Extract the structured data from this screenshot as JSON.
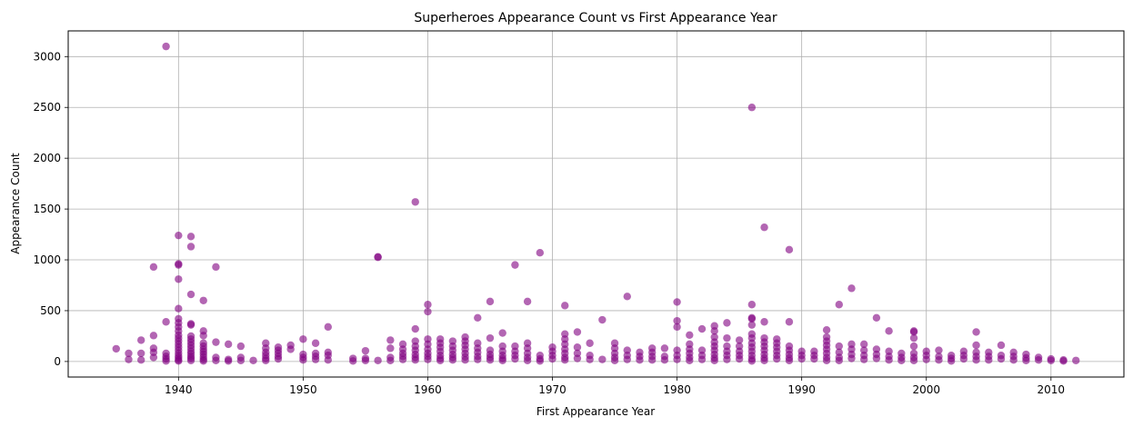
{
  "chart_data": {
    "type": "scatter",
    "title": "Superheroes Appearance Count vs First Appearance Year",
    "xlabel": "First Appearance Year",
    "ylabel": "Appearance Count",
    "xlim": [
      1931.15,
      2015.85
    ],
    "ylim": [
      -153,
      3253
    ],
    "xticks": [
      1940,
      1950,
      1960,
      1970,
      1980,
      1990,
      2000,
      2010
    ],
    "yticks": [
      0,
      500,
      1000,
      1500,
      2000,
      2500,
      3000
    ],
    "grid": true,
    "legend": "none",
    "marker_color": "#800080",
    "marker_alpha": 0.6,
    "points": [
      [
        1935,
        125
      ],
      [
        1936,
        80
      ],
      [
        1936,
        20
      ],
      [
        1937,
        210
      ],
      [
        1937,
        80
      ],
      [
        1937,
        15
      ],
      [
        1938,
        930
      ],
      [
        1938,
        255
      ],
      [
        1938,
        130
      ],
      [
        1938,
        90
      ],
      [
        1938,
        40
      ],
      [
        1939,
        3100
      ],
      [
        1939,
        390
      ],
      [
        1939,
        80
      ],
      [
        1939,
        50
      ],
      [
        1939,
        25
      ],
      [
        1939,
        5
      ],
      [
        1940,
        1240
      ],
      [
        1940,
        960
      ],
      [
        1940,
        950
      ],
      [
        1940,
        810
      ],
      [
        1940,
        520
      ],
      [
        1940,
        420
      ],
      [
        1940,
        380
      ],
      [
        1940,
        340
      ],
      [
        1940,
        300
      ],
      [
        1940,
        260
      ],
      [
        1940,
        230
      ],
      [
        1940,
        200
      ],
      [
        1940,
        170
      ],
      [
        1940,
        140
      ],
      [
        1940,
        110
      ],
      [
        1940,
        80
      ],
      [
        1940,
        55
      ],
      [
        1940,
        35
      ],
      [
        1940,
        15
      ],
      [
        1940,
        5
      ],
      [
        1941,
        1230
      ],
      [
        1941,
        1130
      ],
      [
        1941,
        660
      ],
      [
        1941,
        370
      ],
      [
        1941,
        360
      ],
      [
        1941,
        250
      ],
      [
        1941,
        220
      ],
      [
        1941,
        190
      ],
      [
        1941,
        160
      ],
      [
        1941,
        130
      ],
      [
        1941,
        100
      ],
      [
        1941,
        75
      ],
      [
        1941,
        50
      ],
      [
        1941,
        30
      ],
      [
        1941,
        10
      ],
      [
        1942,
        600
      ],
      [
        1942,
        300
      ],
      [
        1942,
        255
      ],
      [
        1942,
        180
      ],
      [
        1942,
        150
      ],
      [
        1942,
        120
      ],
      [
        1942,
        95
      ],
      [
        1942,
        70
      ],
      [
        1942,
        45
      ],
      [
        1942,
        20
      ],
      [
        1942,
        5
      ],
      [
        1943,
        930
      ],
      [
        1943,
        190
      ],
      [
        1943,
        40
      ],
      [
        1943,
        10
      ],
      [
        1944,
        170
      ],
      [
        1944,
        20
      ],
      [
        1944,
        5
      ],
      [
        1945,
        150
      ],
      [
        1945,
        40
      ],
      [
        1945,
        10
      ],
      [
        1946,
        10
      ],
      [
        1947,
        180
      ],
      [
        1947,
        130
      ],
      [
        1947,
        90
      ],
      [
        1947,
        60
      ],
      [
        1947,
        30
      ],
      [
        1947,
        10
      ],
      [
        1948,
        140
      ],
      [
        1948,
        110
      ],
      [
        1948,
        80
      ],
      [
        1948,
        50
      ],
      [
        1948,
        25
      ],
      [
        1949,
        160
      ],
      [
        1949,
        120
      ],
      [
        1950,
        220
      ],
      [
        1950,
        70
      ],
      [
        1950,
        40
      ],
      [
        1950,
        15
      ],
      [
        1951,
        180
      ],
      [
        1951,
        80
      ],
      [
        1951,
        50
      ],
      [
        1951,
        20
      ],
      [
        1952,
        340
      ],
      [
        1952,
        90
      ],
      [
        1952,
        60
      ],
      [
        1952,
        15
      ],
      [
        1954,
        30
      ],
      [
        1954,
        5
      ],
      [
        1955,
        105
      ],
      [
        1955,
        30
      ],
      [
        1955,
        10
      ],
      [
        1956,
        1030
      ],
      [
        1956,
        1025
      ],
      [
        1956,
        10
      ],
      [
        1957,
        210
      ],
      [
        1957,
        130
      ],
      [
        1957,
        40
      ],
      [
        1957,
        10
      ],
      [
        1958,
        170
      ],
      [
        1958,
        120
      ],
      [
        1958,
        80
      ],
      [
        1958,
        50
      ],
      [
        1958,
        20
      ],
      [
        1959,
        1570
      ],
      [
        1959,
        320
      ],
      [
        1959,
        200
      ],
      [
        1959,
        150
      ],
      [
        1959,
        110
      ],
      [
        1959,
        70
      ],
      [
        1959,
        40
      ],
      [
        1959,
        15
      ],
      [
        1960,
        560
      ],
      [
        1960,
        490
      ],
      [
        1960,
        220
      ],
      [
        1960,
        170
      ],
      [
        1960,
        120
      ],
      [
        1960,
        80
      ],
      [
        1960,
        50
      ],
      [
        1960,
        20
      ],
      [
        1961,
        220
      ],
      [
        1961,
        180
      ],
      [
        1961,
        140
      ],
      [
        1961,
        100
      ],
      [
        1961,
        60
      ],
      [
        1961,
        30
      ],
      [
        1961,
        10
      ],
      [
        1962,
        200
      ],
      [
        1962,
        150
      ],
      [
        1962,
        110
      ],
      [
        1962,
        70
      ],
      [
        1962,
        40
      ],
      [
        1962,
        15
      ],
      [
        1963,
        240
      ],
      [
        1963,
        200
      ],
      [
        1963,
        160
      ],
      [
        1963,
        120
      ],
      [
        1963,
        80
      ],
      [
        1963,
        45
      ],
      [
        1963,
        15
      ],
      [
        1964,
        430
      ],
      [
        1964,
        180
      ],
      [
        1964,
        130
      ],
      [
        1964,
        90
      ],
      [
        1964,
        50
      ],
      [
        1964,
        20
      ],
      [
        1965,
        590
      ],
      [
        1965,
        230
      ],
      [
        1965,
        110
      ],
      [
        1965,
        70
      ],
      [
        1965,
        40
      ],
      [
        1965,
        15
      ],
      [
        1966,
        280
      ],
      [
        1966,
        150
      ],
      [
        1966,
        100
      ],
      [
        1966,
        60
      ],
      [
        1966,
        30
      ],
      [
        1966,
        10
      ],
      [
        1967,
        950
      ],
      [
        1967,
        150
      ],
      [
        1967,
        100
      ],
      [
        1967,
        60
      ],
      [
        1967,
        25
      ],
      [
        1968,
        590
      ],
      [
        1968,
        180
      ],
      [
        1968,
        130
      ],
      [
        1968,
        80
      ],
      [
        1968,
        40
      ],
      [
        1968,
        10
      ],
      [
        1969,
        1070
      ],
      [
        1969,
        60
      ],
      [
        1969,
        25
      ],
      [
        1969,
        5
      ],
      [
        1970,
        140
      ],
      [
        1970,
        100
      ],
      [
        1970,
        60
      ],
      [
        1970,
        25
      ],
      [
        1971,
        550
      ],
      [
        1971,
        270
      ],
      [
        1971,
        220
      ],
      [
        1971,
        170
      ],
      [
        1971,
        120
      ],
      [
        1971,
        80
      ],
      [
        1971,
        40
      ],
      [
        1971,
        15
      ],
      [
        1972,
        290
      ],
      [
        1972,
        140
      ],
      [
        1972,
        80
      ],
      [
        1972,
        30
      ],
      [
        1973,
        180
      ],
      [
        1973,
        60
      ],
      [
        1973,
        20
      ],
      [
        1974,
        410
      ],
      [
        1974,
        20
      ],
      [
        1975,
        180
      ],
      [
        1975,
        130
      ],
      [
        1975,
        80
      ],
      [
        1975,
        40
      ],
      [
        1975,
        10
      ],
      [
        1976,
        640
      ],
      [
        1976,
        110
      ],
      [
        1976,
        60
      ],
      [
        1976,
        20
      ],
      [
        1977,
        90
      ],
      [
        1977,
        50
      ],
      [
        1977,
        15
      ],
      [
        1978,
        130
      ],
      [
        1978,
        90
      ],
      [
        1978,
        50
      ],
      [
        1978,
        15
      ],
      [
        1979,
        130
      ],
      [
        1979,
        50
      ],
      [
        1979,
        15
      ],
      [
        1980,
        585
      ],
      [
        1980,
        400
      ],
      [
        1980,
        340
      ],
      [
        1980,
        110
      ],
      [
        1980,
        60
      ],
      [
        1980,
        20
      ],
      [
        1981,
        260
      ],
      [
        1981,
        170
      ],
      [
        1981,
        120
      ],
      [
        1981,
        80
      ],
      [
        1981,
        40
      ],
      [
        1981,
        10
      ],
      [
        1982,
        320
      ],
      [
        1982,
        110
      ],
      [
        1982,
        60
      ],
      [
        1982,
        20
      ],
      [
        1983,
        350
      ],
      [
        1983,
        300
      ],
      [
        1983,
        240
      ],
      [
        1983,
        190
      ],
      [
        1983,
        150
      ],
      [
        1983,
        110
      ],
      [
        1983,
        70
      ],
      [
        1983,
        35
      ],
      [
        1983,
        10
      ],
      [
        1984,
        380
      ],
      [
        1984,
        230
      ],
      [
        1984,
        150
      ],
      [
        1984,
        100
      ],
      [
        1984,
        60
      ],
      [
        1984,
        20
      ],
      [
        1985,
        210
      ],
      [
        1985,
        150
      ],
      [
        1985,
        100
      ],
      [
        1985,
        60
      ],
      [
        1985,
        25
      ],
      [
        1986,
        2500
      ],
      [
        1986,
        560
      ],
      [
        1986,
        430
      ],
      [
        1986,
        420
      ],
      [
        1986,
        360
      ],
      [
        1986,
        270
      ],
      [
        1986,
        230
      ],
      [
        1986,
        180
      ],
      [
        1986,
        140
      ],
      [
        1986,
        100
      ],
      [
        1986,
        60
      ],
      [
        1986,
        25
      ],
      [
        1986,
        5
      ],
      [
        1987,
        1320
      ],
      [
        1987,
        390
      ],
      [
        1987,
        230
      ],
      [
        1987,
        190
      ],
      [
        1987,
        150
      ],
      [
        1987,
        110
      ],
      [
        1987,
        70
      ],
      [
        1987,
        35
      ],
      [
        1987,
        10
      ],
      [
        1988,
        220
      ],
      [
        1988,
        180
      ],
      [
        1988,
        140
      ],
      [
        1988,
        100
      ],
      [
        1988,
        60
      ],
      [
        1988,
        25
      ],
      [
        1989,
        1100
      ],
      [
        1989,
        390
      ],
      [
        1989,
        150
      ],
      [
        1989,
        110
      ],
      [
        1989,
        70
      ],
      [
        1989,
        35
      ],
      [
        1989,
        10
      ],
      [
        1990,
        100
      ],
      [
        1990,
        60
      ],
      [
        1990,
        25
      ],
      [
        1991,
        100
      ],
      [
        1991,
        60
      ],
      [
        1991,
        25
      ],
      [
        1992,
        310
      ],
      [
        1992,
        240
      ],
      [
        1992,
        200
      ],
      [
        1992,
        160
      ],
      [
        1992,
        120
      ],
      [
        1992,
        80
      ],
      [
        1992,
        40
      ],
      [
        1992,
        10
      ],
      [
        1993,
        560
      ],
      [
        1993,
        150
      ],
      [
        1993,
        90
      ],
      [
        1993,
        40
      ],
      [
        1993,
        10
      ],
      [
        1994,
        720
      ],
      [
        1994,
        170
      ],
      [
        1994,
        120
      ],
      [
        1994,
        70
      ],
      [
        1994,
        30
      ],
      [
        1995,
        170
      ],
      [
        1995,
        110
      ],
      [
        1995,
        60
      ],
      [
        1995,
        20
      ],
      [
        1996,
        430
      ],
      [
        1996,
        120
      ],
      [
        1996,
        70
      ],
      [
        1996,
        30
      ],
      [
        1997,
        300
      ],
      [
        1997,
        100
      ],
      [
        1997,
        50
      ],
      [
        1997,
        15
      ],
      [
        1998,
        80
      ],
      [
        1998,
        40
      ],
      [
        1998,
        10
      ],
      [
        1999,
        300
      ],
      [
        1999,
        290
      ],
      [
        1999,
        230
      ],
      [
        1999,
        150
      ],
      [
        1999,
        80
      ],
      [
        1999,
        40
      ],
      [
        1999,
        10
      ],
      [
        2000,
        100
      ],
      [
        2000,
        60
      ],
      [
        2000,
        20
      ],
      [
        2001,
        110
      ],
      [
        2001,
        50
      ],
      [
        2001,
        15
      ],
      [
        2002,
        60
      ],
      [
        2002,
        30
      ],
      [
        2002,
        5
      ],
      [
        2003,
        100
      ],
      [
        2003,
        60
      ],
      [
        2003,
        25
      ],
      [
        2004,
        290
      ],
      [
        2004,
        160
      ],
      [
        2004,
        90
      ],
      [
        2004,
        50
      ],
      [
        2004,
        15
      ],
      [
        2005,
        90
      ],
      [
        2005,
        50
      ],
      [
        2005,
        15
      ],
      [
        2006,
        160
      ],
      [
        2006,
        60
      ],
      [
        2006,
        25
      ],
      [
        2007,
        90
      ],
      [
        2007,
        50
      ],
      [
        2007,
        15
      ],
      [
        2008,
        70
      ],
      [
        2008,
        35
      ],
      [
        2008,
        10
      ],
      [
        2009,
        40
      ],
      [
        2009,
        15
      ],
      [
        2010,
        25
      ],
      [
        2010,
        10
      ],
      [
        2011,
        15
      ],
      [
        2011,
        5
      ],
      [
        2012,
        10
      ]
    ]
  }
}
